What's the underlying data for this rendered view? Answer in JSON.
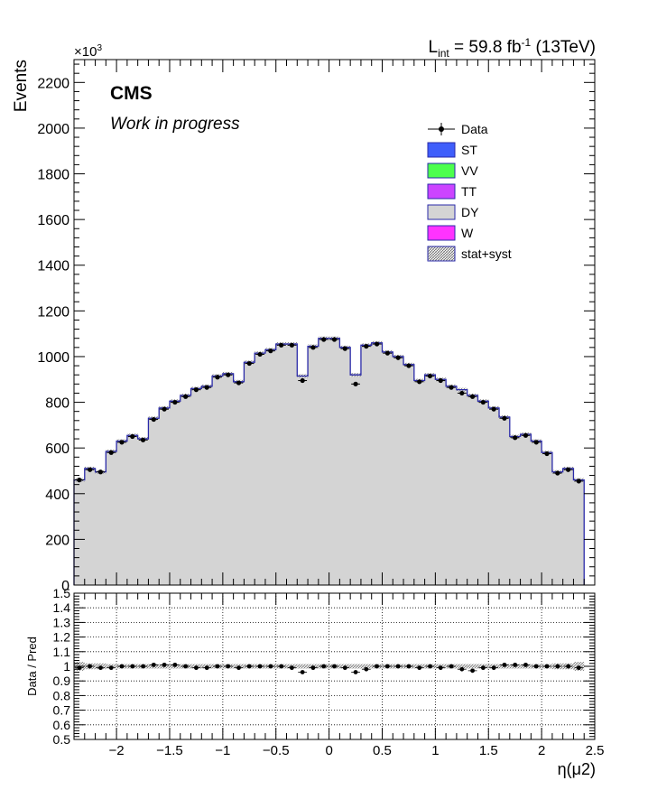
{
  "header": {
    "lumi_prefix": "L",
    "lumi_sub": "int",
    "lumi_mid": " = 59.8 fb",
    "lumi_sup": "-1",
    "lumi_suffix": " (13TeV)",
    "exponent_base": "×10",
    "exponent_power": "3"
  },
  "labels": {
    "experiment": "CMS",
    "status": "Work in progress"
  },
  "colors": {
    "ST": "#3f5efb",
    "VV": "#4dff4d",
    "TT": "#cc44ff",
    "DY": "#d4d4d4",
    "W": "#ff33ff",
    "stack_line": "#2a2aa8",
    "data": "#000000"
  },
  "legend": [
    {
      "label": "Data",
      "kind": "marker"
    },
    {
      "label": "ST",
      "kind": "box",
      "color": "#3f5efb"
    },
    {
      "label": "VV",
      "kind": "box",
      "color": "#4dff4d"
    },
    {
      "label": "TT",
      "kind": "box",
      "color": "#cc44ff"
    },
    {
      "label": "DY",
      "kind": "box",
      "color": "#d4d4d4"
    },
    {
      "label": "W",
      "kind": "box",
      "color": "#ff33ff"
    },
    {
      "label": "stat+syst",
      "kind": "hatch"
    }
  ],
  "chart_data": [
    {
      "type": "histogram",
      "ylabel": "Events",
      "y_scale_note": "×10^3",
      "xlim": [
        -2.4,
        2.5
      ],
      "ylim": [
        0,
        2300
      ],
      "yticks": [
        0,
        200,
        400,
        600,
        800,
        1000,
        1200,
        1400,
        1600,
        1800,
        2000,
        2200
      ],
      "bin_edges": [
        -2.4,
        -2.3,
        -2.2,
        -2.1,
        -2.0,
        -1.9,
        -1.8,
        -1.7,
        -1.6,
        -1.5,
        -1.4,
        -1.3,
        -1.2,
        -1.1,
        -1.0,
        -0.9,
        -0.8,
        -0.7,
        -0.6,
        -0.5,
        -0.4,
        -0.3,
        -0.2,
        -0.1,
        0.0,
        0.1,
        0.2,
        0.3,
        0.4,
        0.5,
        0.6,
        0.7,
        0.8,
        0.9,
        1.0,
        1.1,
        1.2,
        1.3,
        1.4,
        1.5,
        1.6,
        1.7,
        1.8,
        1.9,
        2.0,
        2.1,
        2.2,
        2.3,
        2.4
      ],
      "prediction_total": [
        460,
        510,
        495,
        585,
        630,
        655,
        640,
        730,
        775,
        805,
        830,
        860,
        870,
        915,
        925,
        890,
        975,
        1015,
        1030,
        1055,
        1055,
        915,
        1045,
        1080,
        1080,
        1040,
        920,
        1050,
        1060,
        1020,
        1000,
        965,
        895,
        920,
        900,
        870,
        855,
        830,
        805,
        775,
        735,
        650,
        660,
        630,
        580,
        495,
        510,
        460
      ],
      "data": [
        460,
        505,
        495,
        580,
        625,
        650,
        635,
        725,
        770,
        800,
        825,
        855,
        865,
        910,
        920,
        885,
        970,
        1010,
        1025,
        1050,
        1050,
        895,
        1040,
        1075,
        1075,
        1035,
        880,
        1045,
        1055,
        1015,
        995,
        960,
        890,
        915,
        895,
        865,
        840,
        825,
        800,
        770,
        730,
        645,
        655,
        625,
        575,
        490,
        505,
        455
      ],
      "series": [
        {
          "name": "ST",
          "values": []
        },
        {
          "name": "VV",
          "values": []
        },
        {
          "name": "TT",
          "values": []
        },
        {
          "name": "DY",
          "values": []
        },
        {
          "name": "W",
          "values": []
        }
      ]
    },
    {
      "type": "scatter",
      "xlabel": "η(μ2)",
      "ylabel": "Data / Pred",
      "xlim": [
        -2.4,
        2.5
      ],
      "ylim": [
        0.5,
        1.5
      ],
      "xticks": [
        -2,
        -1.5,
        -1,
        -0.5,
        0,
        0.5,
        1,
        1.5,
        2,
        2.5
      ],
      "xtick_labels": [
        "−2",
        "−1.5",
        "−1",
        "−0.5",
        "0",
        "0.5",
        "1",
        "1.5",
        "2",
        "2.5"
      ],
      "yticks": [
        0.5,
        0.6,
        0.7,
        0.8,
        0.9,
        1,
        1.1,
        1.2,
        1.3,
        1.4,
        1.5
      ],
      "ytick_labels": [
        "0.5",
        "0.6",
        "0.7",
        "0.8",
        "0.9",
        "1",
        "1.1",
        "1.2",
        "1.3",
        "1.4",
        "1.5"
      ],
      "x": [
        -2.35,
        -2.25,
        -2.15,
        -2.05,
        -1.95,
        -1.85,
        -1.75,
        -1.65,
        -1.55,
        -1.45,
        -1.35,
        -1.25,
        -1.15,
        -1.05,
        -0.95,
        -0.85,
        -0.75,
        -0.65,
        -0.55,
        -0.45,
        -0.35,
        -0.25,
        -0.15,
        -0.05,
        0.05,
        0.15,
        0.25,
        0.35,
        0.45,
        0.55,
        0.65,
        0.75,
        0.85,
        0.95,
        1.05,
        1.15,
        1.25,
        1.35,
        1.45,
        1.55,
        1.65,
        1.75,
        1.85,
        1.95,
        2.05,
        2.15,
        2.25,
        2.35
      ],
      "ratio": [
        0.99,
        1.0,
        0.99,
        0.99,
        1.0,
        1.0,
        1.0,
        1.01,
        1.01,
        1.01,
        1.0,
        0.99,
        0.99,
        1.0,
        1.0,
        0.99,
        1.0,
        1.0,
        1.0,
        1.0,
        0.99,
        0.96,
        0.99,
        1.0,
        1.0,
        0.99,
        0.96,
        0.98,
        1.0,
        1.0,
        1.0,
        1.0,
        0.99,
        1.0,
        0.99,
        1.0,
        0.98,
        0.97,
        0.99,
        0.99,
        1.01,
        1.01,
        1.01,
        1.0,
        1.0,
        1.0,
        1.0,
        0.99
      ],
      "band_halfwidth": [
        0.03,
        0.02,
        0.02,
        0.015,
        0.015,
        0.015,
        0.015,
        0.015,
        0.015,
        0.015,
        0.015,
        0.015,
        0.015,
        0.015,
        0.015,
        0.015,
        0.015,
        0.015,
        0.015,
        0.015,
        0.015,
        0.015,
        0.015,
        0.015,
        0.015,
        0.015,
        0.015,
        0.015,
        0.015,
        0.015,
        0.015,
        0.015,
        0.015,
        0.015,
        0.015,
        0.015,
        0.015,
        0.015,
        0.015,
        0.015,
        0.015,
        0.015,
        0.015,
        0.015,
        0.015,
        0.02,
        0.02,
        0.03
      ]
    }
  ]
}
